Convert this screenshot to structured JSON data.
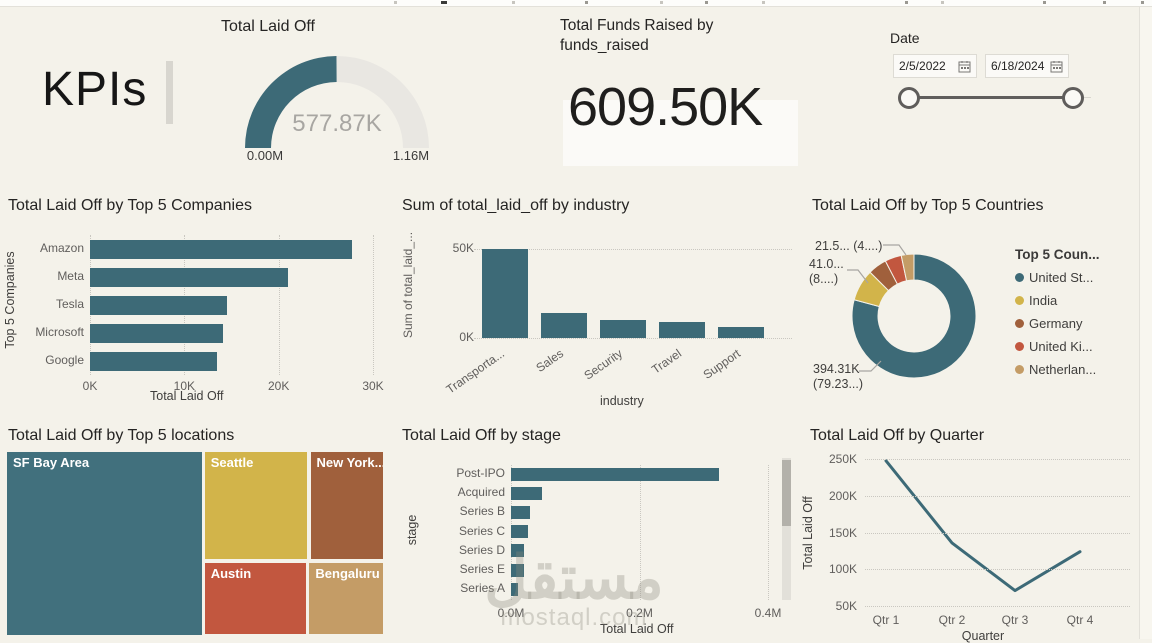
{
  "kpi": {
    "title": "KPIs"
  },
  "gauge": {
    "title": "Total Laid Off",
    "value": 577870,
    "min": 0,
    "max": 1160000,
    "value_label": "577.87K",
    "min_label": "0.00M",
    "max_label": "1.16M"
  },
  "card": {
    "title_line1": "Total Funds Raised by",
    "title_line2": "funds_raised",
    "value": "609.50K"
  },
  "date_slicer": {
    "label": "Date",
    "start_date": "2/5/2022",
    "end_date": "6/18/2024"
  },
  "colors": {
    "teal": "#3d6a77",
    "yellow": "#d2b44a",
    "brown": "#a0603c",
    "red": "#c2573f",
    "tan": "#c49c66",
    "gauge_track": "#e9e7e2",
    "background": "#f4f2ea",
    "text_dark": "#252423",
    "text_gray": "#605e5c"
  },
  "watermark": {
    "arabic": "مستقل",
    "latin": "mostaql.com"
  },
  "chart_data": [
    {
      "id": "companies",
      "type": "bar",
      "orientation": "horizontal",
      "title": "Total Laid Off by Top 5 Companies",
      "categories": [
        "Amazon",
        "Meta",
        "Tesla",
        "Microsoft",
        "Google"
      ],
      "values": [
        27800,
        21000,
        14500,
        14100,
        13500
      ],
      "xlim": [
        0,
        30000
      ],
      "xticks": [
        {
          "v": 0,
          "label": "0K"
        },
        {
          "v": 10000,
          "label": "10K"
        },
        {
          "v": 20000,
          "label": "20K"
        },
        {
          "v": 30000,
          "label": "30K"
        }
      ],
      "xlabel": "Total Laid Off",
      "ylabel": "Top 5 Companies",
      "bar_color": "#3d6a77",
      "grid": true
    },
    {
      "id": "industry",
      "type": "bar",
      "orientation": "vertical",
      "title": "Sum of total_laid_off by industry",
      "categories": [
        "Transporta...",
        "Sales",
        "Security",
        "Travel",
        "Support"
      ],
      "values": [
        50000,
        14000,
        10300,
        9000,
        6200
      ],
      "ylim": [
        0,
        50000
      ],
      "yticks": [
        {
          "v": 0,
          "label": "0K"
        },
        {
          "v": 50000,
          "label": "50K"
        }
      ],
      "xlabel": "industry",
      "ylabel": "Sum of total_laid_...",
      "bar_color": "#3d6a77",
      "grid": true
    },
    {
      "id": "countries",
      "type": "donut",
      "title": "Total Laid Off by Top 5 Countries",
      "legend_title": "Top 5 Coun...",
      "legend_position": "right",
      "slices": [
        {
          "label": "United St...",
          "value": 394310,
          "pct": 79.23,
          "color": "#3d6a77"
        },
        {
          "label": "India",
          "value": 41000,
          "pct": 8.24,
          "color": "#d2b44a"
        },
        {
          "label": "Germany",
          "value": 24400,
          "pct": 4.9,
          "color": "#a0603c"
        },
        {
          "label": "United Ki...",
          "value": 21500,
          "pct": 4.32,
          "color": "#c2573f"
        },
        {
          "label": "Netherlan...",
          "value": 16500,
          "pct": 3.31,
          "color": "#c49c66"
        }
      ],
      "callouts": [
        {
          "lines": [
            "21.5... (4....)"
          ]
        },
        {
          "lines": [
            "41.0...",
            "(8....)"
          ]
        },
        {
          "lines": [
            "394.31K",
            "(79.23...)"
          ]
        }
      ]
    },
    {
      "id": "locations",
      "type": "treemap",
      "title": "Total Laid Off by Top 5 locations",
      "tiles": [
        {
          "label": "SF Bay Area",
          "color": "#41707d",
          "x": 0,
          "y": 0,
          "w": 0.519,
          "h": 1.0
        },
        {
          "label": "Seattle",
          "color": "#d2b44a",
          "x": 0.523,
          "y": 0,
          "w": 0.275,
          "h": 0.592
        },
        {
          "label": "New York...",
          "color": "#a0603c",
          "x": 0.803,
          "y": 0,
          "w": 0.197,
          "h": 0.592
        },
        {
          "label": "Austin",
          "color": "#c2573f",
          "x": 0.523,
          "y": 0.603,
          "w": 0.272,
          "h": 0.397
        },
        {
          "label": "Bengaluru",
          "color": "#c49c66",
          "x": 0.8,
          "y": 0.603,
          "w": 0.2,
          "h": 0.397
        }
      ]
    },
    {
      "id": "stage",
      "type": "bar",
      "orientation": "horizontal",
      "title": "Total Laid Off by stage",
      "categories": [
        "Post-IPO",
        "Acquired",
        "Series B",
        "Series C",
        "Series D",
        "Series E",
        "Series A"
      ],
      "values": [
        323000,
        48000,
        29000,
        27000,
        21000,
        21000,
        11000
      ],
      "xlim": [
        0,
        400000
      ],
      "xticks": [
        {
          "v": 0,
          "label": "0.0M"
        },
        {
          "v": 200000,
          "label": "0.2M"
        },
        {
          "v": 400000,
          "label": "0.4M"
        }
      ],
      "xlabel": "Total Laid Off",
      "ylabel": "stage",
      "bar_color": "#3d6a77",
      "grid": true,
      "scrollbar": true
    },
    {
      "id": "quarter",
      "type": "line",
      "title": "Total Laid Off by Quarter",
      "x": [
        "Qtr 1",
        "Qtr 2",
        "Qtr 3",
        "Qtr 4"
      ],
      "values": [
        248000,
        136000,
        71000,
        124000
      ],
      "ylim": [
        50000,
        250000
      ],
      "yticks": [
        {
          "v": 50000,
          "label": "50K"
        },
        {
          "v": 100000,
          "label": "100K"
        },
        {
          "v": 150000,
          "label": "150K"
        },
        {
          "v": 200000,
          "label": "200K"
        },
        {
          "v": 250000,
          "label": "250K"
        }
      ],
      "xlabel": "Quarter",
      "ylabel": "Total Laid Off",
      "line_color": "#3d6a77",
      "grid": true
    }
  ]
}
